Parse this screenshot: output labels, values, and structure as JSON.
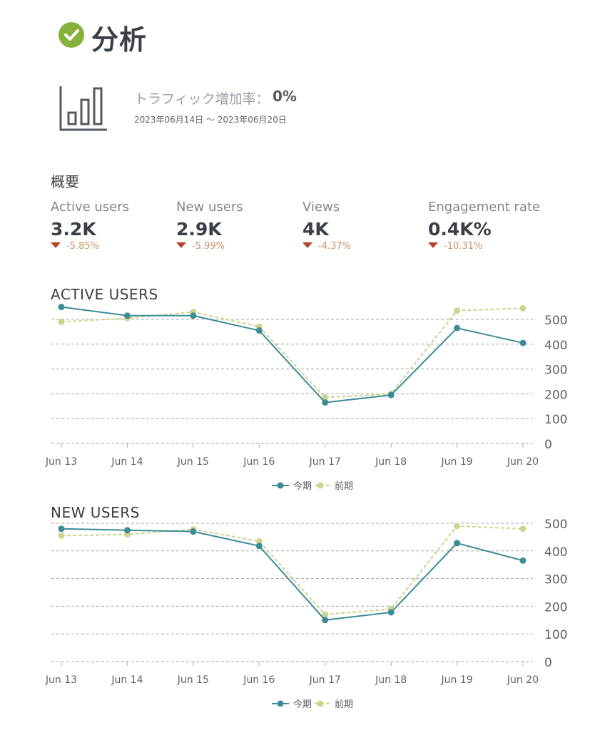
{
  "page": {
    "title": "分析",
    "traffic": {
      "label": "トラフィック増加率：",
      "value": "0%"
    },
    "date_range": "2023年06月14日 ～ 2023年06月20日"
  },
  "overview": {
    "heading": "概要",
    "metrics": [
      {
        "label": "Active users",
        "value": "3.2K",
        "change": "-5.85%"
      },
      {
        "label": "New users",
        "value": "2.9K",
        "change": "-5.99%"
      },
      {
        "label": "Views",
        "value": "4K",
        "change": "-4.37%"
      },
      {
        "label": "Engagement rate",
        "value": "0.4K%",
        "change": "-10.31%"
      }
    ]
  },
  "colors": {
    "current": "#3d8c95",
    "previous": "#cdd48e",
    "accent_check": "#86b13c",
    "decrease": "#b5452a"
  },
  "chart_data": [
    {
      "type": "line",
      "title": "ACTIVE USERS",
      "categories": [
        "Jun 13",
        "Jun 14",
        "Jun 15",
        "Jun 16",
        "Jun 17",
        "Jun 18",
        "Jun 19",
        "Jun 20"
      ],
      "series": [
        {
          "name": "今期",
          "values": [
            550,
            515,
            515,
            455,
            165,
            195,
            465,
            405
          ]
        },
        {
          "name": "前期",
          "values": [
            490,
            505,
            530,
            470,
            185,
            200,
            535,
            545
          ]
        }
      ],
      "ylim": [
        0,
        500
      ],
      "yticks": [
        0,
        100,
        200,
        300,
        400,
        500
      ],
      "grid": true,
      "legend": "bottom-center"
    },
    {
      "type": "line",
      "title": "NEW USERS",
      "categories": [
        "Jun 13",
        "Jun 14",
        "Jun 15",
        "Jun 16",
        "Jun 17",
        "Jun 18",
        "Jun 19",
        "Jun 20"
      ],
      "series": [
        {
          "name": "今期",
          "values": [
            480,
            475,
            470,
            418,
            150,
            178,
            428,
            365
          ]
        },
        {
          "name": "前期",
          "values": [
            455,
            460,
            478,
            435,
            170,
            190,
            490,
            480
          ]
        }
      ],
      "ylim": [
        0,
        500
      ],
      "yticks": [
        0,
        100,
        200,
        300,
        400,
        500
      ],
      "grid": true,
      "legend": "bottom-center"
    }
  ]
}
